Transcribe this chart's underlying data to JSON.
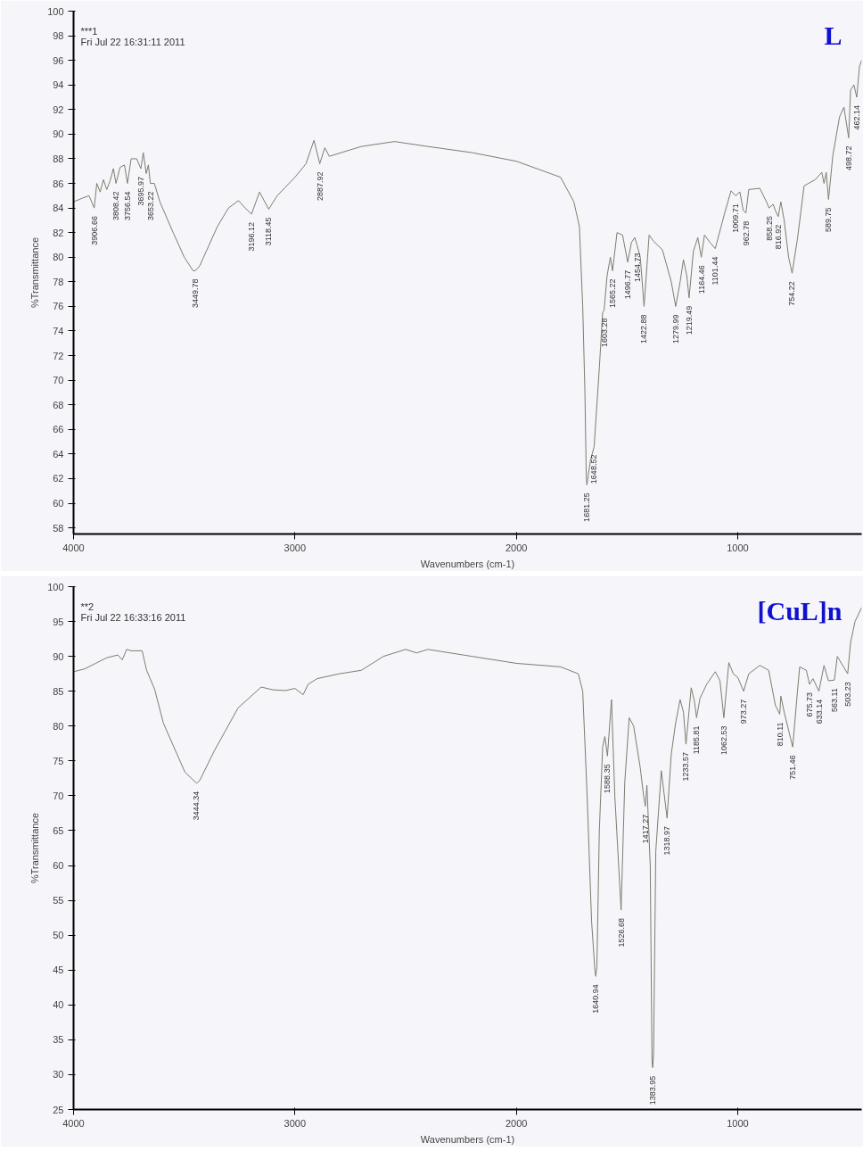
{
  "chart_data": [
    {
      "type": "line",
      "title": "L",
      "xlabel": "Wavenumbers (cm-1)",
      "ylabel": "%Transmittance",
      "xlim": [
        4000,
        440
      ],
      "ylim": [
        57.5,
        100
      ],
      "xticks": [
        4000,
        3000,
        2000,
        1000
      ],
      "yticks": [
        58,
        60,
        62,
        64,
        66,
        68,
        70,
        72,
        74,
        76,
        78,
        80,
        82,
        84,
        86,
        88,
        90,
        92,
        94,
        96,
        98,
        100
      ],
      "grid": false,
      "series": [
        {
          "color": "#7d7d6e",
          "x": [
            4000,
            3960,
            3930,
            3906.66,
            3895,
            3880,
            3865,
            3850,
            3835,
            3820,
            3808.42,
            3790,
            3770,
            3756.54,
            3740,
            3715,
            3695.97,
            3685,
            3671.74,
            3662,
            3653.22,
            3635,
            3610,
            3550,
            3500,
            3460,
            3449.78,
            3430,
            3400,
            3350,
            3300,
            3255,
            3225,
            3196.12,
            3160,
            3118.45,
            3080,
            3000,
            2950,
            2914,
            2900,
            2887.92,
            2865,
            2845,
            2700,
            2550,
            2400,
            2200,
            2000,
            1800,
            1740,
            1715,
            1700,
            1690,
            1684,
            1681.25,
            1677,
            1665,
            1648.52,
            1625,
            1610,
            1603.28,
            1590,
            1575,
            1565.22,
            1545,
            1520,
            1496.77,
            1480,
            1465,
            1454.73,
            1440,
            1422.88,
            1400,
            1380,
            1340,
            1300,
            1279.99,
            1260,
            1245,
            1230,
            1219.49,
            1200,
            1180,
            1164.46,
            1150,
            1125,
            1101.44,
            1060,
            1030,
            1015,
            1009.71,
            990,
            975,
            962.78,
            950,
            900,
            870,
            858.25,
            840,
            830,
            816.92,
            805,
            790,
            770,
            754.22,
            730,
            700,
            650,
            620,
            610,
            600,
            589.75,
            570,
            540,
            520,
            498.72,
            490,
            475,
            462.14,
            450,
            440
          ],
          "values": [
            84.5,
            84.8,
            85.0,
            84.0,
            86.0,
            85.3,
            86.3,
            85.5,
            86.2,
            87.2,
            86.0,
            87.3,
            87.5,
            86.0,
            88.0,
            88.0,
            87.2,
            88.5,
            86.8,
            87.5,
            86.0,
            86.0,
            84.5,
            82.0,
            80.0,
            78.9,
            78.9,
            79.3,
            80.5,
            82.5,
            84.0,
            84.6,
            84.0,
            83.5,
            85.3,
            83.9,
            85.0,
            86.5,
            87.6,
            89.5,
            88.5,
            87.6,
            88.9,
            88.2,
            89.0,
            89.4,
            89.0,
            88.5,
            87.8,
            86.5,
            84.5,
            82.5,
            76.0,
            69.0,
            62.2,
            61.5,
            62.0,
            63.5,
            64.6,
            71.0,
            75.5,
            75.7,
            78.5,
            80.0,
            78.9,
            82.0,
            81.8,
            79.6,
            81.2,
            81.6,
            81.0,
            80.0,
            76.0,
            81.8,
            81.3,
            80.6,
            78.0,
            76.0,
            78.0,
            79.8,
            78.5,
            76.7,
            80.5,
            81.6,
            80.0,
            81.8,
            81.2,
            80.7,
            83.5,
            85.4,
            85.1,
            85.0,
            85.3,
            83.8,
            83.6,
            85.5,
            85.6,
            84.5,
            84.0,
            84.3,
            83.8,
            83.3,
            84.5,
            83.0,
            80.0,
            78.7,
            81.5,
            85.8,
            86.3,
            86.9,
            86.0,
            86.9,
            84.7,
            88.3,
            91.4,
            92.2,
            89.7,
            93.6,
            94.0,
            93.0,
            95.5,
            96.0
          ]
        }
      ],
      "annotations": [
        "***1",
        "Fri Jul 22 16:31:11 2011",
        {
          "text": "3906.66",
          "x": 3906.66,
          "y": 84.0
        },
        {
          "text": "3808.42",
          "x": 3808.42,
          "y": 86.0
        },
        {
          "text": "3756.54",
          "x": 3756.54,
          "y": 86.0
        },
        {
          "text": "3695.97",
          "x": 3695.97,
          "y": 87.2
        },
        {
          "text": "3653.22",
          "x": 3653.22,
          "y": 86.0
        },
        {
          "text": "3449.78",
          "x": 3449.78,
          "y": 78.9
        },
        {
          "text": "3196.12",
          "x": 3196.12,
          "y": 83.5
        },
        {
          "text": "3118.45",
          "x": 3118.45,
          "y": 83.9
        },
        {
          "text": "2887.92",
          "x": 2887.92,
          "y": 87.6
        },
        {
          "text": "1681.25",
          "x": 1681.25,
          "y": 61.5
        },
        {
          "text": "1648.52",
          "x": 1648.52,
          "y": 64.6
        },
        {
          "text": "1603.28",
          "x": 1603.28,
          "y": 75.7
        },
        {
          "text": "1565.22",
          "x": 1565.22,
          "y": 78.9
        },
        {
          "text": "1496.77",
          "x": 1496.77,
          "y": 79.6
        },
        {
          "text": "1454.73",
          "x": 1454.73,
          "y": 81.0
        },
        {
          "text": "1422.88",
          "x": 1422.88,
          "y": 76.0
        },
        {
          "text": "1279.99",
          "x": 1279.99,
          "y": 76.0
        },
        {
          "text": "1219.49",
          "x": 1219.49,
          "y": 76.7
        },
        {
          "text": "1164.46",
          "x": 1164.46,
          "y": 80.0
        },
        {
          "text": "1101.44",
          "x": 1101.44,
          "y": 80.7
        },
        {
          "text": "1009.71",
          "x": 1009.71,
          "y": 85.0
        },
        {
          "text": "962.78",
          "x": 962.78,
          "y": 83.6
        },
        {
          "text": "858.25",
          "x": 858.25,
          "y": 84.0
        },
        {
          "text": "816.92",
          "x": 816.92,
          "y": 83.3
        },
        {
          "text": "754.22",
          "x": 754.22,
          "y": 78.7
        },
        {
          "text": "589.75",
          "x": 589.75,
          "y": 84.7
        },
        {
          "text": "498.72",
          "x": 498.72,
          "y": 89.7
        },
        {
          "text": "462.14",
          "x": 462.14,
          "y": 93.0
        }
      ]
    },
    {
      "type": "line",
      "title": "[CuL]n",
      "xlabel": "Wavenumbers (cm-1)",
      "ylabel": "%Transmittance",
      "xlim": [
        4000,
        440
      ],
      "ylim": [
        25,
        100
      ],
      "xticks": [
        4000,
        3000,
        2000,
        1000
      ],
      "yticks": [
        25,
        30,
        35,
        40,
        45,
        50,
        55,
        60,
        65,
        70,
        75,
        80,
        85,
        90,
        95,
        100
      ],
      "grid": false,
      "series": [
        {
          "color": "#7d7d6e",
          "x": [
            4000,
            3950,
            3900,
            3850,
            3800,
            3780,
            3760,
            3740,
            3690,
            3670,
            3634,
            3594,
            3497,
            3444.34,
            3430,
            3365,
            3257,
            3152,
            3100,
            3043,
            3000,
            2963,
            2940,
            2900,
            2800,
            2700,
            2600,
            2500,
            2450,
            2400,
            2200,
            2000,
            1800,
            1720,
            1700,
            1680,
            1660,
            1645,
            1640.94,
            1636,
            1625,
            1610,
            1600,
            1588.35,
            1570,
            1555,
            1526.68,
            1510,
            1490,
            1470,
            1440,
            1425,
            1417.27,
            1410,
            1395,
            1387,
            1383.95,
            1380,
            1370,
            1345,
            1318.97,
            1300,
            1280,
            1260,
            1245,
            1233.57,
            1210,
            1195,
            1185.81,
            1170,
            1140,
            1101,
            1080,
            1062.53,
            1040,
            1020,
            1000,
            973.27,
            950,
            900,
            860,
            830,
            810.11,
            805,
            790,
            751.46,
            730,
            720,
            690,
            675.73,
            660,
            633.14,
            610,
            590,
            563.11,
            550,
            503.23,
            490,
            470,
            440
          ],
          "values": [
            87.8,
            88.2,
            89.0,
            89.8,
            90.2,
            89.5,
            91.0,
            90.8,
            90.8,
            88.0,
            85.3,
            80.4,
            73.4,
            71.8,
            72.2,
            76.4,
            82.6,
            85.6,
            85.2,
            85.1,
            85.4,
            84.5,
            86.0,
            86.8,
            87.5,
            88.0,
            90.0,
            91.0,
            90.5,
            91.0,
            90.0,
            89.0,
            88.5,
            87.5,
            85.0,
            70.0,
            52.0,
            45.0,
            44.1,
            45.5,
            65.0,
            77.0,
            78.5,
            75.7,
            83.8,
            70.0,
            53.6,
            72.0,
            81.2,
            80.0,
            74.0,
            70.0,
            68.5,
            71.5,
            60.0,
            32.0,
            31.0,
            33.0,
            62.0,
            73.6,
            66.8,
            76.0,
            80.5,
            83.8,
            82.0,
            77.4,
            85.5,
            83.5,
            81.2,
            84.0,
            86.0,
            87.8,
            86.5,
            81.2,
            89.1,
            87.5,
            87.0,
            85.0,
            87.5,
            88.7,
            88.0,
            83.0,
            81.7,
            84.3,
            82.0,
            77.0,
            85.0,
            88.5,
            88.0,
            86.0,
            86.8,
            85.0,
            88.7,
            86.5,
            86.6,
            90.0,
            87.5,
            92.0,
            95.0,
            97.0
          ]
        }
      ],
      "annotations": [
        "**2",
        "Fri Jul 22 16:33:16 2011",
        {
          "text": "3444.34",
          "x": 3444.34,
          "y": 71.8
        },
        {
          "text": "1640.94",
          "x": 1640.94,
          "y": 44.1
        },
        {
          "text": "1588.35",
          "x": 1588.35,
          "y": 75.7
        },
        {
          "text": "1526.68",
          "x": 1526.68,
          "y": 53.6
        },
        {
          "text": "1417.27",
          "x": 1417.27,
          "y": 68.5
        },
        {
          "text": "1383.95",
          "x": 1383.95,
          "y": 31.0
        },
        {
          "text": "1318.97",
          "x": 1318.97,
          "y": 66.8
        },
        {
          "text": "1233.57",
          "x": 1233.57,
          "y": 77.4
        },
        {
          "text": "1185.81",
          "x": 1185.81,
          "y": 81.2
        },
        {
          "text": "1062.53",
          "x": 1062.53,
          "y": 81.2
        },
        {
          "text": "973.27",
          "x": 973.27,
          "y": 85.0
        },
        {
          "text": "810.11",
          "x": 810.11,
          "y": 81.7
        },
        {
          "text": "751.46",
          "x": 751.46,
          "y": 77.0
        },
        {
          "text": "675.73",
          "x": 675.73,
          "y": 86.0
        },
        {
          "text": "633.14",
          "x": 633.14,
          "y": 85.0
        },
        {
          "text": "563.11",
          "x": 563.11,
          "y": 86.6
        },
        {
          "text": "503.23",
          "x": 503.23,
          "y": 87.5
        }
      ]
    }
  ]
}
